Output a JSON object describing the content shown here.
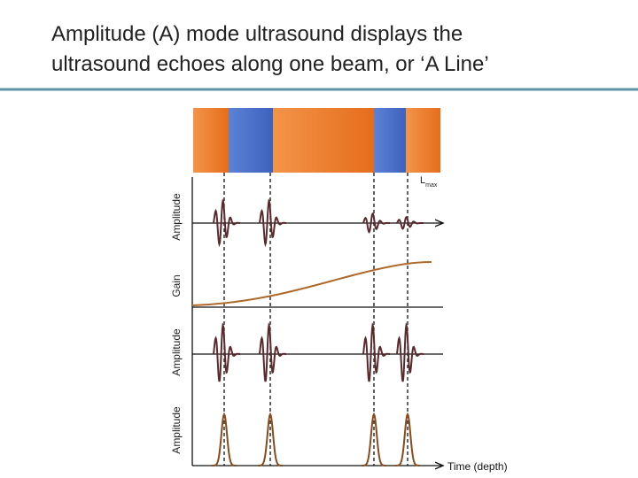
{
  "title": {
    "lines": [
      "Amplitude (A) mode ultrasound displays the",
      "ultrasound echoes along one beam, or ‘A Line’"
    ]
  },
  "axis_labels": [
    "Amplitude",
    "Gain",
    "Amplitude",
    "Amplitude"
  ],
  "lmax": {
    "main": "L",
    "sub": "max"
  },
  "x_label": "Time (depth)"
}
